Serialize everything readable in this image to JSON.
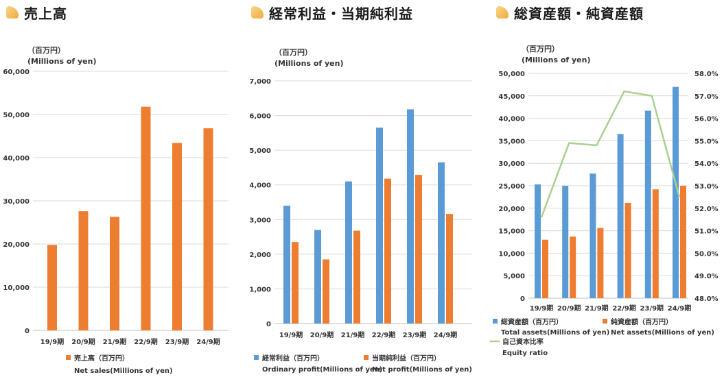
{
  "colors": {
    "orange": "#ED7D31",
    "blue": "#5B9BD5",
    "green": "#A9D18E",
    "grid": "#D9D9D9",
    "icon_orange": "#F0A93A"
  },
  "chart_data": [
    {
      "type": "bar",
      "title": "売上高",
      "unit_jp": "（百万円）",
      "unit_en": "(Millions of yen)",
      "categories": [
        "19/9期",
        "20/9期",
        "21/9期",
        "22/9期",
        "23/9期",
        "24/9期"
      ],
      "ylim": [
        0,
        60000
      ],
      "yticks": [
        0,
        10000,
        20000,
        30000,
        40000,
        50000,
        60000
      ],
      "ytick_labels": [
        "0",
        "10,000",
        "20,000",
        "30,000",
        "40,000",
        "50,000",
        "60,000"
      ],
      "series": [
        {
          "name": "売上高（百万円）",
          "name_en": "Net sales(Millions of yen)",
          "color": "#ED7D31",
          "values": [
            19800,
            27600,
            26300,
            51800,
            43400,
            46800
          ]
        }
      ]
    },
    {
      "type": "bar",
      "title": "経常利益・当期純利益",
      "unit_jp": "（百万円）",
      "unit_en": "(Millions of yen)",
      "categories": [
        "19/9期",
        "20/9期",
        "21/9期",
        "22/9期",
        "23/9期",
        "24/9期"
      ],
      "ylim": [
        0,
        7000
      ],
      "yticks": [
        0,
        1000,
        2000,
        3000,
        4000,
        5000,
        6000,
        7000
      ],
      "ytick_labels": [
        "0",
        "1,000",
        "2,000",
        "3,000",
        "4,000",
        "5,000",
        "6,000",
        "7,000"
      ],
      "series": [
        {
          "name": "経常利益（百万円）",
          "name_en": "Ordinary profit(Millions of yen)",
          "color": "#5B9BD5",
          "values": [
            3400,
            2700,
            4100,
            5650,
            6180,
            4650
          ]
        },
        {
          "name": "当期純利益（百万円）",
          "name_en": "Net profit(Millions of yen)",
          "color": "#ED7D31",
          "values": [
            2350,
            1850,
            2680,
            4180,
            4290,
            3160
          ]
        }
      ]
    },
    {
      "type": "bar+line",
      "title": "総資産額・純資産額",
      "unit_jp": "（百万円）",
      "unit_en": "(Millions of yen)",
      "categories": [
        "19/9期",
        "20/9期",
        "21/9期",
        "22/9期",
        "23/9期",
        "24/9期"
      ],
      "ylim": [
        0,
        50000
      ],
      "yticks": [
        0,
        5000,
        10000,
        15000,
        20000,
        25000,
        30000,
        35000,
        40000,
        45000,
        50000
      ],
      "ytick_labels": [
        "0",
        "5,000",
        "10,000",
        "15,000",
        "20,000",
        "25,000",
        "30,000",
        "35,000",
        "40,000",
        "45,000",
        "50,000"
      ],
      "y2lim": [
        48.0,
        58.0
      ],
      "y2ticks": [
        48,
        49,
        50,
        51,
        52,
        53,
        54,
        55,
        56,
        57,
        58
      ],
      "y2tick_labels": [
        "48.0%",
        "49.0%",
        "50.0%",
        "51.0%",
        "52.0%",
        "53.0%",
        "54.0%",
        "55.0%",
        "56.0%",
        "57.0%",
        "58.0%"
      ],
      "series": [
        {
          "name": "総資産額（百万円）",
          "name_en": "Total assets(Millions of yen)",
          "color": "#5B9BD5",
          "values": [
            25300,
            25000,
            27700,
            36500,
            41700,
            47000
          ]
        },
        {
          "name": "純資産額（百万円）",
          "name_en": "Net assets(Millions of yen)",
          "color": "#ED7D31",
          "values": [
            13000,
            13700,
            15600,
            21200,
            24200,
            25000
          ]
        }
      ],
      "line": {
        "name": "自己資本比率",
        "name_en": "Equity ratio",
        "color": "#A9D18E",
        "values": [
          51.6,
          54.9,
          54.8,
          57.2,
          57.0,
          52.5
        ]
      }
    }
  ]
}
